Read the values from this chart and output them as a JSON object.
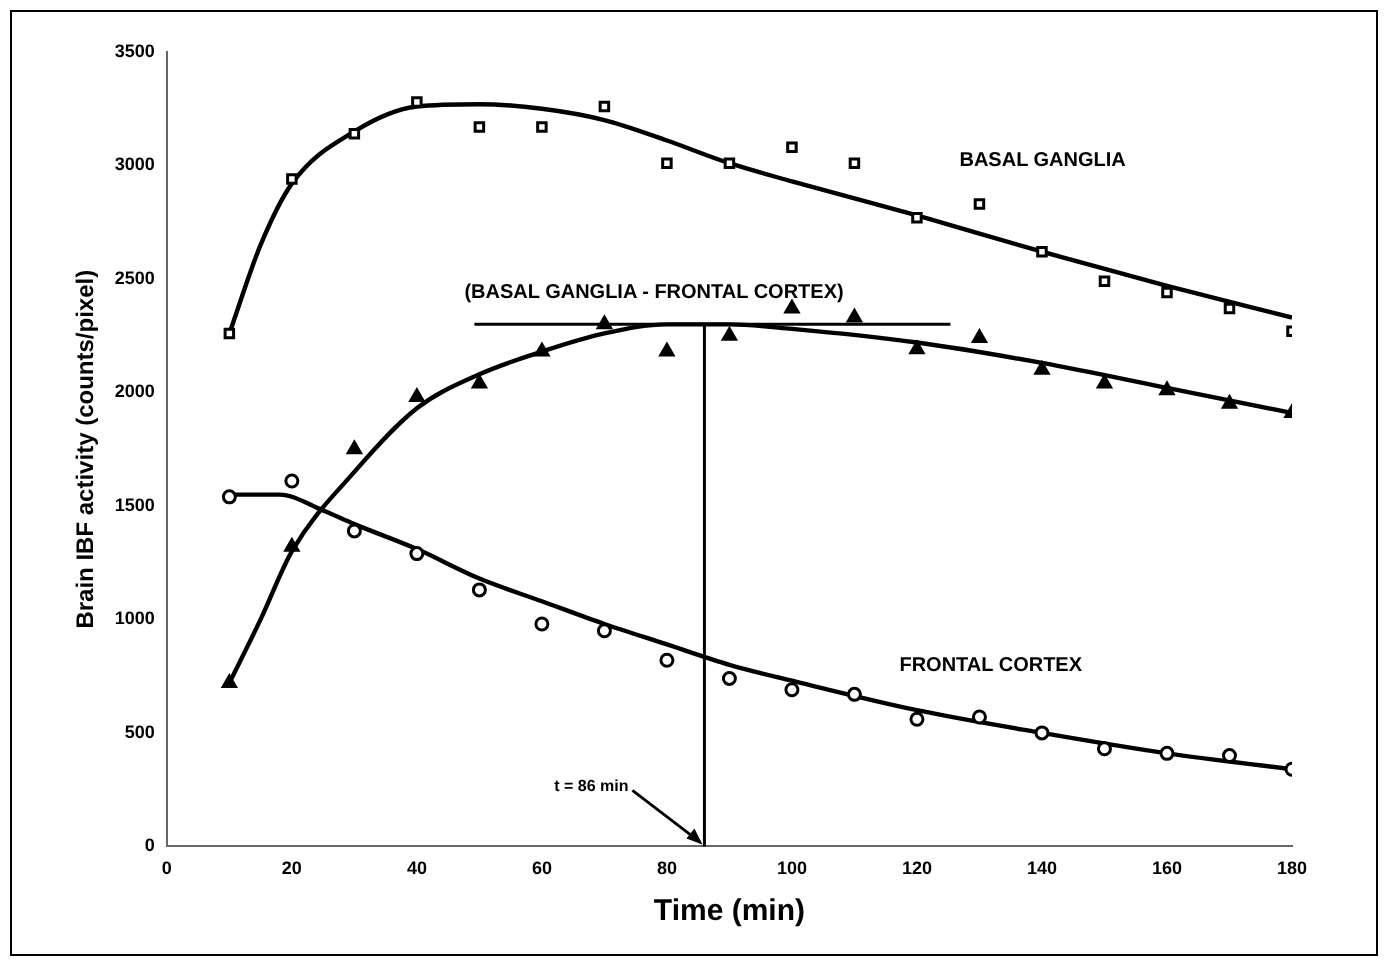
{
  "chart_data": {
    "type": "scatter",
    "xlabel": "Time (min)",
    "ylabel": "Brain IBF activity (counts/pixel)",
    "xlim": [
      0,
      180
    ],
    "xticks": [
      0,
      20,
      40,
      60,
      80,
      100,
      120,
      140,
      160,
      180
    ],
    "ylim": [
      0,
      3500
    ],
    "yticks": [
      0,
      500,
      1000,
      1500,
      2000,
      2500,
      3000,
      3500
    ],
    "grid": false,
    "legend": false,
    "series": [
      {
        "name": "BASAL GANGLIA",
        "type": "scatter",
        "marker": "square",
        "color": "#000000",
        "x": [
          10,
          20,
          30,
          40,
          50,
          60,
          70,
          80,
          90,
          100,
          110,
          120,
          130,
          140,
          150,
          160,
          170,
          180
        ],
        "values": [
          2260,
          2940,
          3140,
          3280,
          3170,
          3170,
          3260,
          3010,
          3010,
          3080,
          3010,
          2770,
          2830,
          2620,
          2490,
          2440,
          2370,
          2270
        ]
      },
      {
        "name": "(BASAL GANGLIA - FRONTAL CORTEX)",
        "type": "scatter",
        "marker": "triangle",
        "color": "#000000",
        "x": [
          10,
          20,
          30,
          40,
          50,
          60,
          70,
          80,
          90,
          100,
          110,
          120,
          130,
          140,
          150,
          160,
          170,
          180
        ],
        "values": [
          720,
          1320,
          1750,
          1980,
          2040,
          2180,
          2300,
          2180,
          2250,
          2370,
          2330,
          2190,
          2240,
          2100,
          2040,
          2010,
          1950,
          1910
        ]
      },
      {
        "name": "FRONTAL CORTEX",
        "type": "scatter",
        "marker": "circle",
        "color": "#000000",
        "x": [
          10,
          20,
          30,
          40,
          50,
          60,
          70,
          80,
          90,
          100,
          110,
          120,
          130,
          140,
          150,
          160,
          170,
          180
        ],
        "values": [
          1540,
          1610,
          1390,
          1290,
          1130,
          980,
          950,
          820,
          740,
          690,
          670,
          560,
          570,
          500,
          430,
          410,
          400,
          340
        ]
      },
      {
        "type": "line",
        "marker": "none",
        "line_style": "solid",
        "color": "#000000",
        "x": [
          10,
          15,
          20,
          30,
          40,
          50,
          60,
          70,
          80,
          90,
          100,
          120,
          140,
          160,
          180
        ],
        "values": [
          2260,
          2650,
          2920,
          3150,
          3260,
          3270,
          3250,
          3200,
          3110,
          3010,
          2930,
          2780,
          2620,
          2470,
          2330
        ]
      },
      {
        "type": "line",
        "marker": "none",
        "line_style": "solid",
        "color": "#000000",
        "x": [
          10,
          15,
          20,
          30,
          40,
          50,
          60,
          70,
          80,
          90,
          100,
          120,
          140,
          160,
          180
        ],
        "values": [
          720,
          1000,
          1300,
          1650,
          1930,
          2080,
          2180,
          2260,
          2300,
          2300,
          2280,
          2220,
          2130,
          2020,
          1910
        ]
      },
      {
        "type": "line",
        "marker": "none",
        "line_style": "solid",
        "color": "#000000",
        "x": [
          10,
          18,
          25,
          30,
          40,
          50,
          60,
          70,
          80,
          90,
          100,
          120,
          140,
          160,
          180
        ],
        "values": [
          1550,
          1550,
          1480,
          1420,
          1310,
          1180,
          1080,
          980,
          890,
          800,
          730,
          600,
          500,
          410,
          340
        ]
      }
    ],
    "ref_lines": [
      {
        "axis": "y",
        "value": 2300,
        "color": "#000000"
      },
      {
        "axis": "x",
        "value": 86,
        "label": "t = 86 min",
        "color": "#000000"
      }
    ]
  }
}
